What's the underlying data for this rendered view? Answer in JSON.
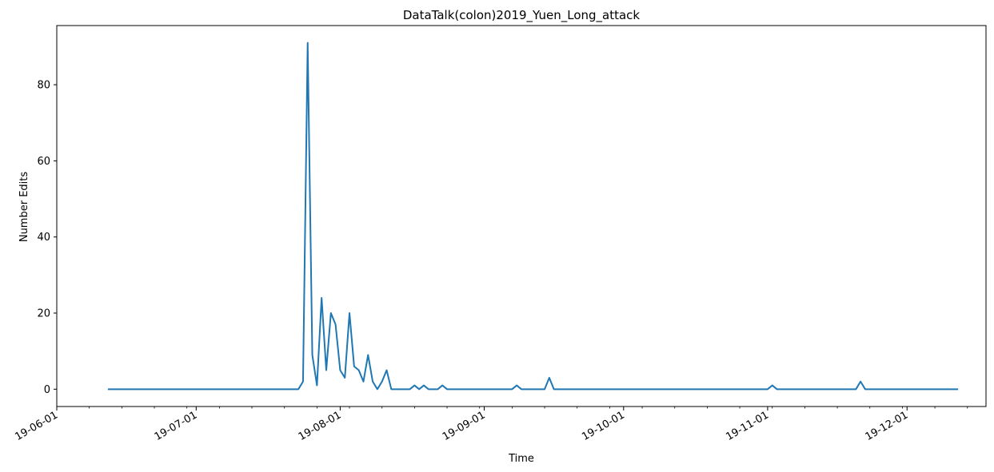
{
  "chart_data": {
    "type": "line",
    "title": "DataTalk(colon)2019_Yuen_Long_attack",
    "xlabel": "Time",
    "ylabel": "Number Edits",
    "x_axis": {
      "kind": "date",
      "range": [
        "2019-06-01",
        "2019-12-18"
      ],
      "major_ticks": [
        "2019-06-01",
        "2019-07-01",
        "2019-08-01",
        "2019-09-01",
        "2019-10-01",
        "2019-11-01",
        "2019-12-01"
      ],
      "major_tick_labels": [
        "19-06-01",
        "19-07-01",
        "19-08-01",
        "19-09-01",
        "19-10-01",
        "19-11-01",
        "19-12-01"
      ],
      "minor_ticks": "weekly"
    },
    "y_axis": {
      "range": [
        -4.55,
        95.55
      ],
      "ticks": [
        0,
        20,
        40,
        60,
        80
      ]
    },
    "grid": false,
    "legend": "none",
    "color": "#1f77b4",
    "series": [
      {
        "points": [
          [
            "2019-06-12",
            0
          ],
          [
            "2019-07-23",
            0
          ],
          [
            "2019-07-24",
            2
          ],
          [
            "2019-07-25",
            91
          ],
          [
            "2019-07-26",
            9
          ],
          [
            "2019-07-27",
            1
          ],
          [
            "2019-07-28",
            24
          ],
          [
            "2019-07-29",
            5
          ],
          [
            "2019-07-30",
            20
          ],
          [
            "2019-07-31",
            17
          ],
          [
            "2019-08-01",
            5
          ],
          [
            "2019-08-02",
            3
          ],
          [
            "2019-08-03",
            20
          ],
          [
            "2019-08-04",
            6
          ],
          [
            "2019-08-05",
            5
          ],
          [
            "2019-08-06",
            2
          ],
          [
            "2019-08-07",
            9
          ],
          [
            "2019-08-08",
            2
          ],
          [
            "2019-08-09",
            0
          ],
          [
            "2019-08-10",
            2
          ],
          [
            "2019-08-11",
            5
          ],
          [
            "2019-08-12",
            0
          ],
          [
            "2019-08-15",
            0
          ],
          [
            "2019-08-16",
            0
          ],
          [
            "2019-08-17",
            1
          ],
          [
            "2019-08-18",
            0
          ],
          [
            "2019-08-19",
            1
          ],
          [
            "2019-08-20",
            0
          ],
          [
            "2019-08-22",
            0
          ],
          [
            "2019-08-23",
            1
          ],
          [
            "2019-08-24",
            0
          ],
          [
            "2019-09-07",
            0
          ],
          [
            "2019-09-08",
            1
          ],
          [
            "2019-09-09",
            0
          ],
          [
            "2019-09-14",
            0
          ],
          [
            "2019-09-15",
            3
          ],
          [
            "2019-09-16",
            0
          ],
          [
            "2019-11-01",
            0
          ],
          [
            "2019-11-02",
            1
          ],
          [
            "2019-11-03",
            0
          ],
          [
            "2019-11-20",
            0
          ],
          [
            "2019-11-21",
            2
          ],
          [
            "2019-11-22",
            0
          ],
          [
            "2019-12-12",
            0
          ]
        ]
      }
    ]
  }
}
